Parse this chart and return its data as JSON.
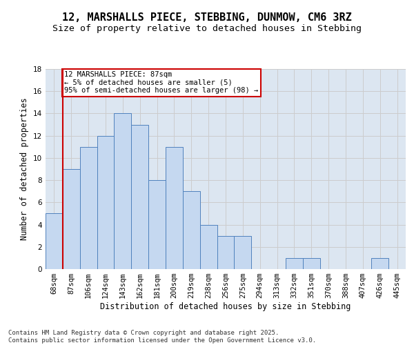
{
  "title": "12, MARSHALLS PIECE, STEBBING, DUNMOW, CM6 3RZ",
  "subtitle": "Size of property relative to detached houses in Stebbing",
  "xlabel": "Distribution of detached houses by size in Stebbing",
  "ylabel": "Number of detached properties",
  "categories": [
    "68sqm",
    "87sqm",
    "106sqm",
    "124sqm",
    "143sqm",
    "162sqm",
    "181sqm",
    "200sqm",
    "219sqm",
    "238sqm",
    "256sqm",
    "275sqm",
    "294sqm",
    "313sqm",
    "332sqm",
    "351sqm",
    "370sqm",
    "388sqm",
    "407sqm",
    "426sqm",
    "445sqm"
  ],
  "values": [
    5,
    9,
    11,
    12,
    14,
    13,
    8,
    11,
    7,
    4,
    3,
    3,
    0,
    0,
    1,
    1,
    0,
    0,
    0,
    1,
    0
  ],
  "bar_color": "#c5d8f0",
  "bar_edge_color": "#4f81bd",
  "highlight_index": 1,
  "highlight_line_color": "#cc0000",
  "ylim": [
    0,
    18
  ],
  "yticks": [
    0,
    2,
    4,
    6,
    8,
    10,
    12,
    14,
    16,
    18
  ],
  "grid_color": "#cccccc",
  "background_color": "#dce6f1",
  "annotation_text": "12 MARSHALLS PIECE: 87sqm\n← 5% of detached houses are smaller (5)\n95% of semi-detached houses are larger (98) →",
  "annotation_box_color": "#ffffff",
  "annotation_box_edge": "#cc0000",
  "footer": "Contains HM Land Registry data © Crown copyright and database right 2025.\nContains public sector information licensed under the Open Government Licence v3.0.",
  "title_fontsize": 11,
  "subtitle_fontsize": 9.5,
  "axis_label_fontsize": 8.5,
  "tick_fontsize": 7.5,
  "annotation_fontsize": 7.5,
  "footer_fontsize": 6.5
}
